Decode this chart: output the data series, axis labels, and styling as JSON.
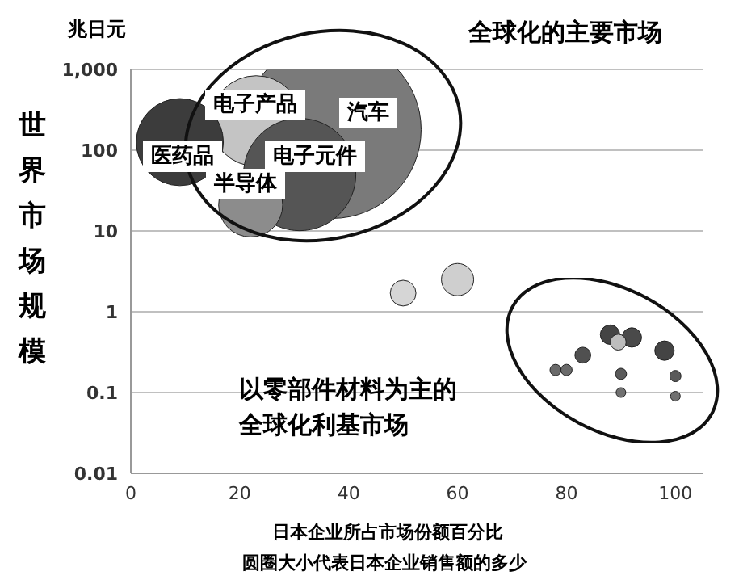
{
  "chart_data": {
    "type": "bubble",
    "ylabel": "世界市场规模",
    "xlabel": "日本企业所占市场份额百分比",
    "x": [
      37,
      23,
      9,
      31,
      22,
      50,
      60,
      88,
      92,
      89.5,
      98,
      83,
      78,
      80,
      90,
      100,
      90,
      100
    ],
    "values": [
      180,
      230,
      126,
      50,
      21,
      1.7,
      2.5,
      0.52,
      0.48,
      0.42,
      0.33,
      0.29,
      0.19,
      0.19,
      0.17,
      0.16,
      0.1,
      0.09
    ],
    "sizes": [
      1,
      0.26,
      0.24,
      0.4,
      0.13,
      0.021,
      0.033,
      0.012,
      0.012,
      0.008,
      0.012,
      0.008,
      0.004,
      0.004,
      0.004,
      0.004,
      0.003,
      0.003
    ],
    "colors": [
      "#7a7a7a",
      "#c4c4c4",
      "#3c3c3c",
      "#555555",
      "#8c8c8c",
      "#d6d6d6",
      "#cfcfcf",
      "#444444",
      "#4a4a4a",
      "#bdbdbd",
      "#444444",
      "#505050",
      "#6a6a6a",
      "#6a6a6a",
      "#5a5a5a",
      "#5a5a5a",
      "#707070",
      "#707070"
    ],
    "xlim": [
      0,
      105
    ],
    "xticks": [
      0,
      20,
      40,
      60,
      80,
      100
    ],
    "ylim": [
      0.01,
      1000
    ],
    "yticks": [
      0.01,
      0.1,
      1,
      10,
      100,
      {
        "value": 1000,
        "label": "1,000"
      }
    ],
    "log": "y",
    "grid": "y",
    "annotations": [
      "汽车",
      "电子产品",
      "医药品",
      "电子元件",
      "半导体",
      "兆日元",
      "全球化的主要市场",
      "以零部件材料为主的全球化利基市场",
      "圆圈大小代表日本企业销售额的多少"
    ]
  }
}
